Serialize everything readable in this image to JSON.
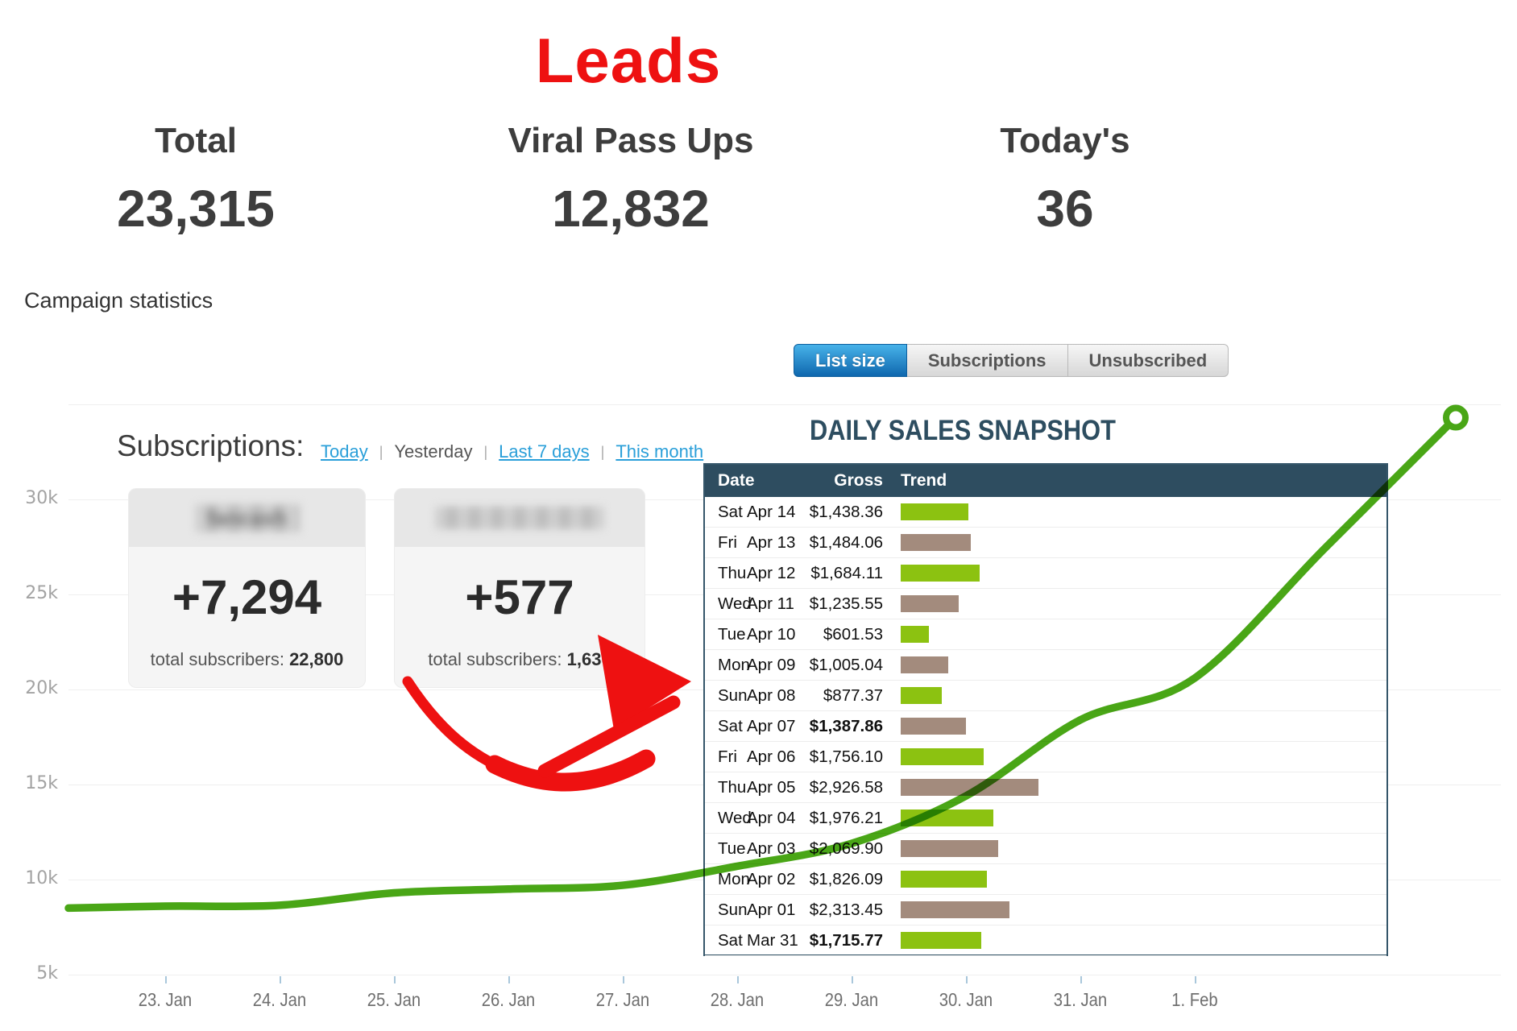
{
  "colors": {
    "red": "#ee1111",
    "line_green": "#49a616",
    "bar_green": "#8cc211",
    "bar_brown": "#a38b7d",
    "header_slate": "#2e4d60"
  },
  "page": {
    "title": "Leads"
  },
  "stats": [
    {
      "label": "Total",
      "value": "23,315"
    },
    {
      "label": "Viral Pass Ups",
      "value": "12,832"
    },
    {
      "label": "Today's",
      "value": "36"
    }
  ],
  "campaign": {
    "label": "Campaign statistics",
    "tabs": [
      {
        "label": "List size",
        "active": true
      },
      {
        "label": "Subscriptions",
        "active": false
      },
      {
        "label": "Unsubscribed",
        "active": false
      }
    ]
  },
  "subscriptions_panel": {
    "heading": "Subscriptions:",
    "links": [
      {
        "label": "Today",
        "link": true
      },
      {
        "label": "Yesterday",
        "link": false
      },
      {
        "label": "Last 7 days",
        "link": true
      },
      {
        "label": "This month",
        "link": true
      }
    ],
    "cards": [
      {
        "name_hint": "fancash",
        "redacted": true,
        "delta": "+7,294",
        "total_label": "total subscribers:",
        "total": "22,800"
      },
      {
        "name_hint": "",
        "redacted": true,
        "delta": "+577",
        "total_label": "total subscribers:",
        "total": "1,636"
      }
    ]
  },
  "sales_table": {
    "title": "DAILY SALES SNAPSHOT",
    "columns": [
      "Date",
      "Gross",
      "Trend"
    ],
    "rows": [
      {
        "day": "Sat",
        "date": "Apr 14",
        "gross": "$1,438.36",
        "gross_value": 1438.36,
        "bold": false
      },
      {
        "day": "Fri",
        "date": "Apr 13",
        "gross": "$1,484.06",
        "gross_value": 1484.06,
        "bold": false
      },
      {
        "day": "Thu",
        "date": "Apr 12",
        "gross": "$1,684.11",
        "gross_value": 1684.11,
        "bold": false
      },
      {
        "day": "Wed",
        "date": "Apr 11",
        "gross": "$1,235.55",
        "gross_value": 1235.55,
        "bold": false
      },
      {
        "day": "Tue",
        "date": "Apr 10",
        "gross": "$601.53",
        "gross_value": 601.53,
        "bold": false
      },
      {
        "day": "Mon",
        "date": "Apr 09",
        "gross": "$1,005.04",
        "gross_value": 1005.04,
        "bold": false
      },
      {
        "day": "Sun",
        "date": "Apr 08",
        "gross": "$877.37",
        "gross_value": 877.37,
        "bold": false
      },
      {
        "day": "Sat",
        "date": "Apr 07",
        "gross": "$1,387.86",
        "gross_value": 1387.86,
        "bold": true
      },
      {
        "day": "Fri",
        "date": "Apr 06",
        "gross": "$1,756.10",
        "gross_value": 1756.1,
        "bold": false
      },
      {
        "day": "Thu",
        "date": "Apr 05",
        "gross": "$2,926.58",
        "gross_value": 2926.58,
        "bold": false
      },
      {
        "day": "Wed",
        "date": "Apr 04",
        "gross": "$1,976.21",
        "gross_value": 1976.21,
        "bold": false
      },
      {
        "day": "Tue",
        "date": "Apr 03",
        "gross": "$2,069.90",
        "gross_value": 2069.9,
        "bold": false
      },
      {
        "day": "Mon",
        "date": "Apr 02",
        "gross": "$1,826.09",
        "gross_value": 1826.09,
        "bold": false
      },
      {
        "day": "Sun",
        "date": "Apr 01",
        "gross": "$2,313.45",
        "gross_value": 2313.45,
        "bold": false
      },
      {
        "day": "Sat",
        "date": "Mar 31",
        "gross": "$1,715.77",
        "gross_value": 1715.77,
        "bold": true
      }
    ]
  },
  "chart_data": {
    "type": "line",
    "title": "Subscriptions (list size)",
    "x_labels": [
      "23. Jan",
      "24. Jan",
      "25. Jan",
      "26. Jan",
      "27. Jan",
      "28. Jan",
      "29. Jan",
      "30. Jan",
      "31. Jan",
      "1. Feb"
    ],
    "values": [
      8600,
      8650,
      9300,
      9500,
      9700,
      10700,
      11900,
      14400,
      18400,
      20600
    ],
    "start_value": 8500,
    "end_marker_value": 34300,
    "y_ticks": [
      "5k",
      "10k",
      "15k",
      "20k",
      "25k",
      "30k"
    ],
    "y_tick_values": [
      5000,
      10000,
      15000,
      20000,
      25000,
      30000
    ],
    "ylim": [
      5000,
      35000
    ],
    "grid": true,
    "legend_position": "none",
    "line_color": "#49a616",
    "marker": "open-circle-end"
  }
}
